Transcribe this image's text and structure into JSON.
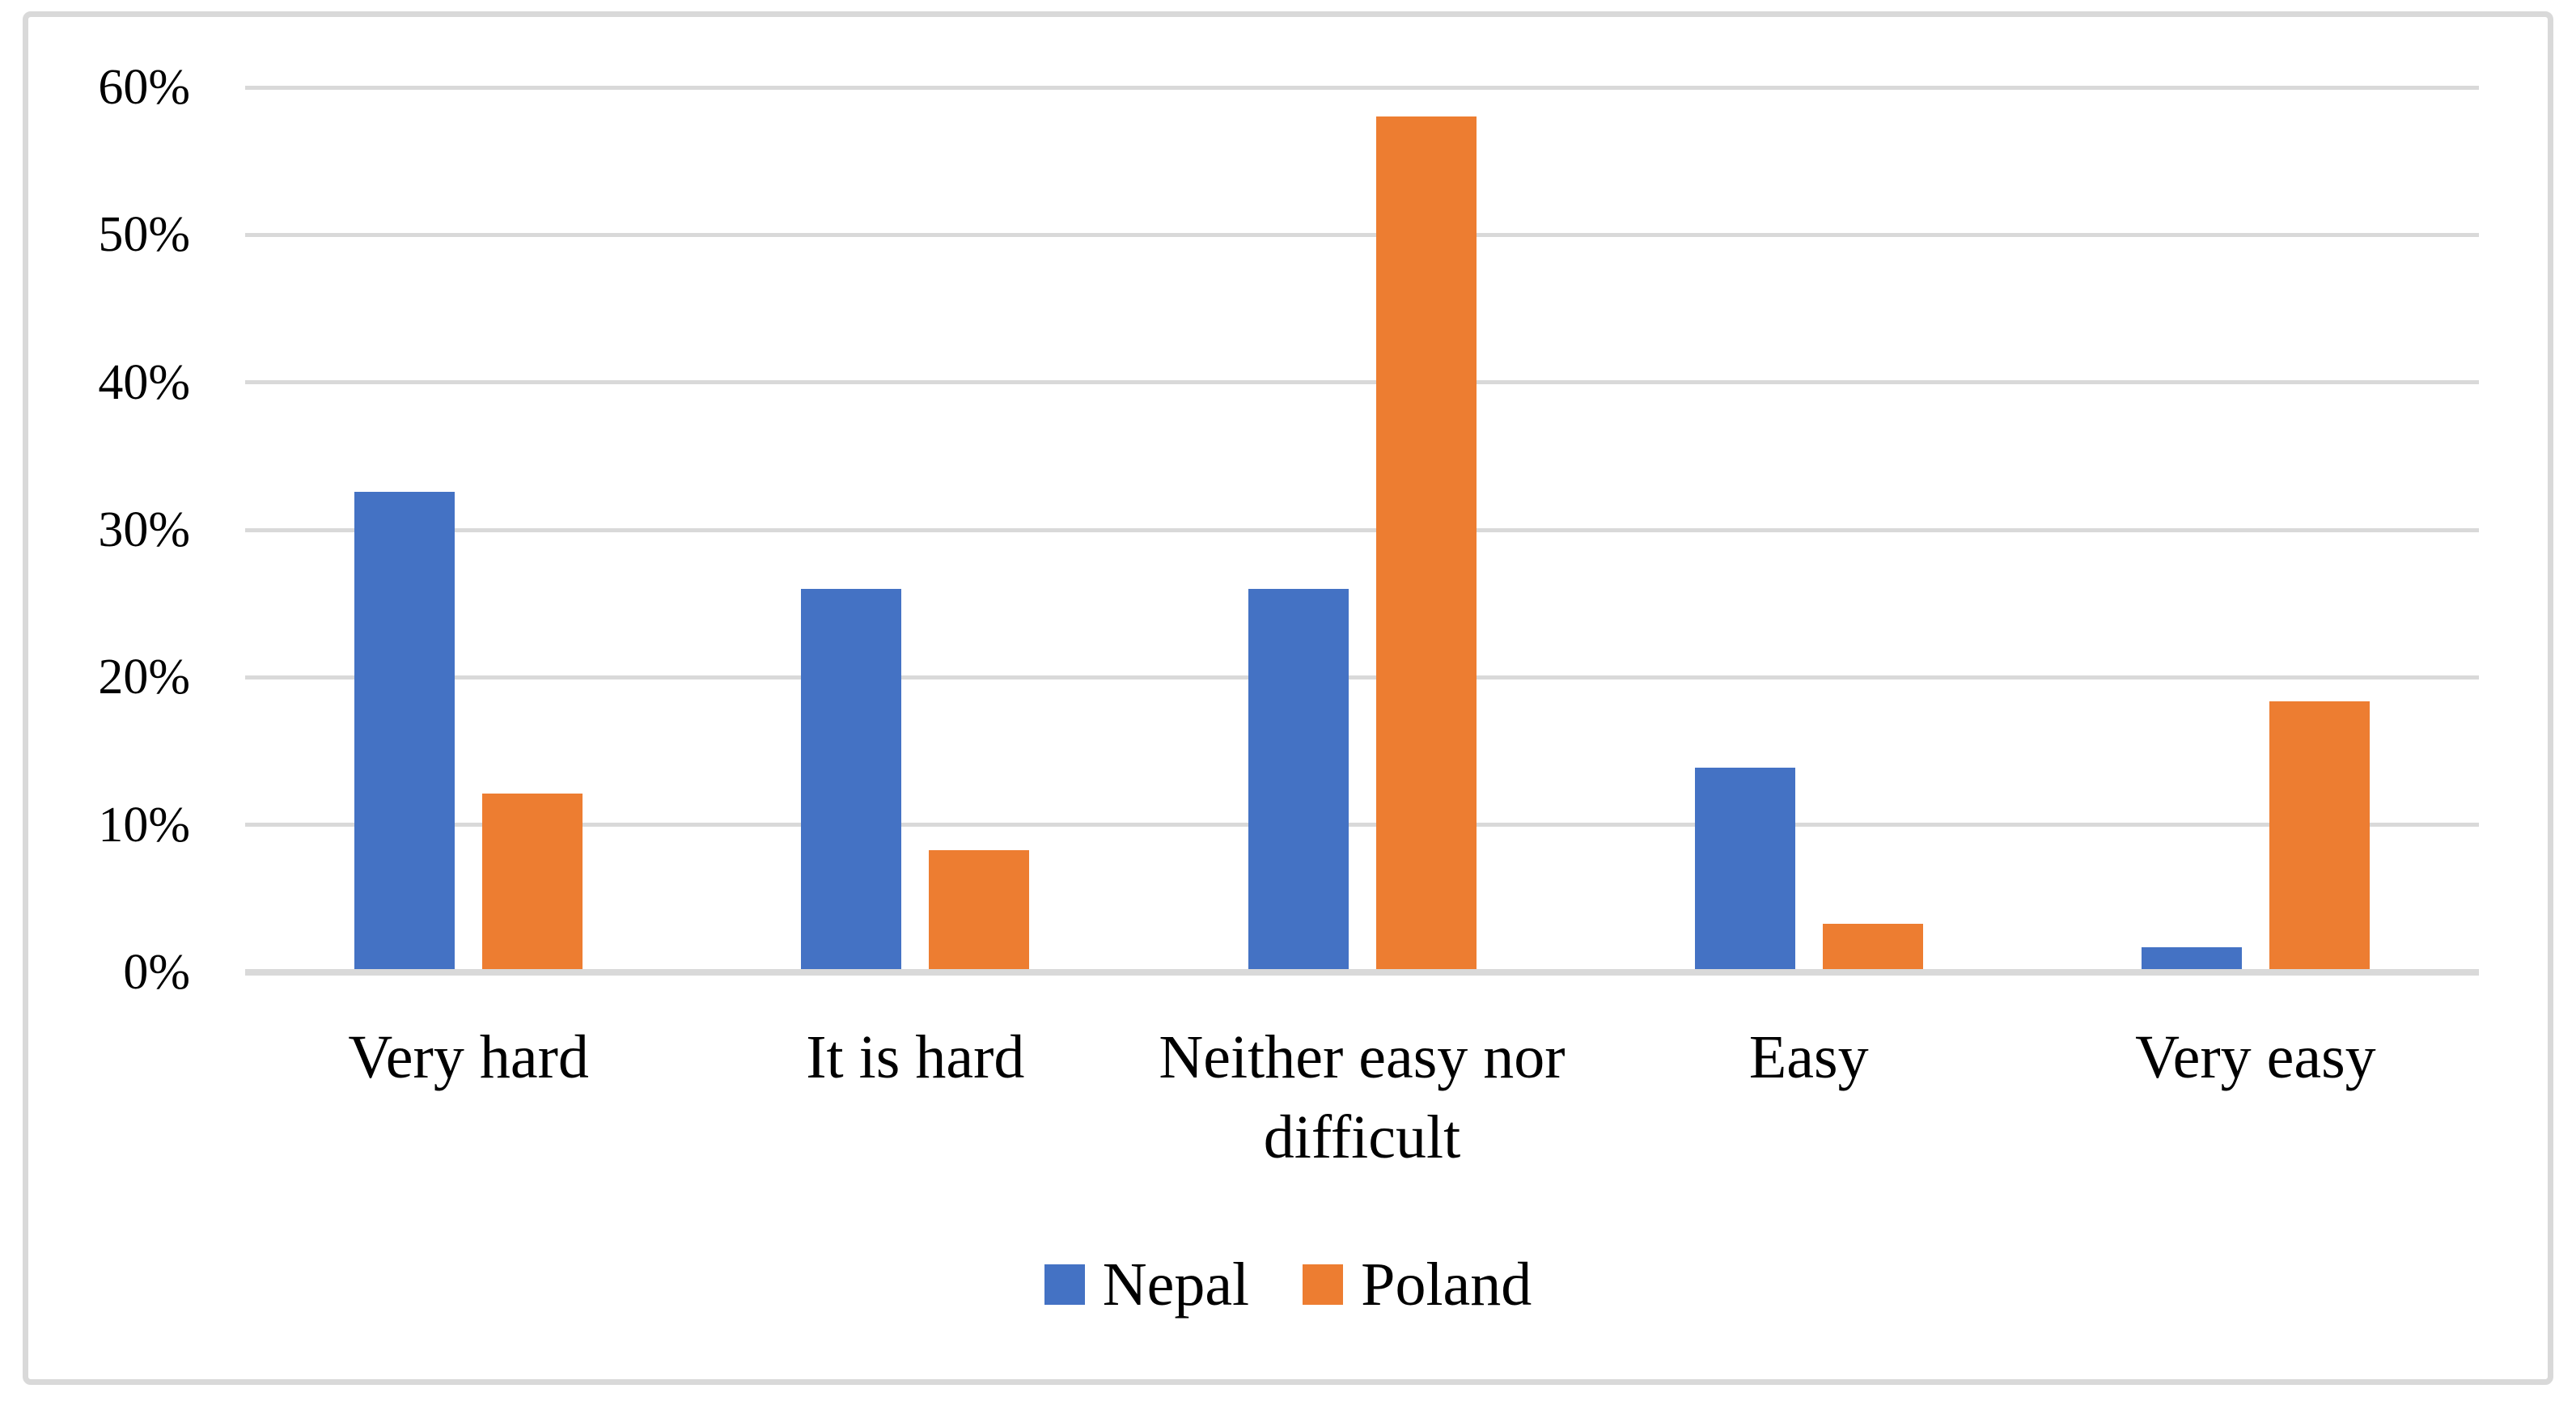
{
  "figure": {
    "background": "#FFFFFF",
    "border_color": "#D9D9D9"
  },
  "chart_data": {
    "type": "bar",
    "title": "",
    "xlabel": "",
    "ylabel": "",
    "categories": [
      "Very hard",
      "It is hard",
      "Neither easy nor difficult",
      "Easy",
      "Very easy"
    ],
    "series": [
      {
        "name": "Nepal",
        "color": "#4472C4",
        "values": [
          32.6,
          26.0,
          26.0,
          13.9,
          1.7
        ]
      },
      {
        "name": "Poland",
        "color": "#ED7D31",
        "values": [
          12.1,
          8.3,
          58.0,
          3.3,
          18.4
        ]
      }
    ],
    "y_axis": {
      "min": 0,
      "max": 60,
      "unit": "percent",
      "tick_values": [
        0,
        10,
        20,
        30,
        40,
        50,
        60
      ],
      "tick_labels": [
        "0%",
        "10%",
        "20%",
        "30%",
        "40%",
        "50%",
        "60%"
      ]
    },
    "grid": true,
    "gridline_color": "#D9D9D9",
    "axis_line_color": "#D9D9D9",
    "legend_position": "bottom"
  }
}
